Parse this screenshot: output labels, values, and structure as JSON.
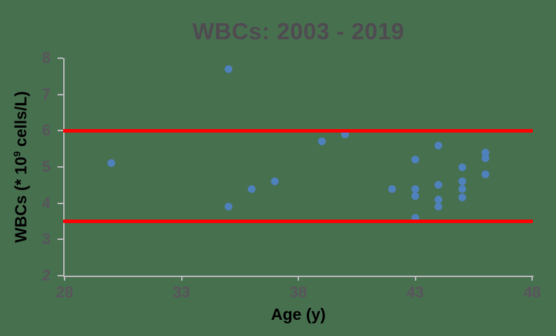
{
  "figure": {
    "background_color": "#47704f"
  },
  "chart_data": {
    "type": "scatter",
    "title": "WBCs: 2003 - 2019",
    "xlabel": "Age (y)",
    "ylabel": "WBCs (* 10⁹ cells/L)",
    "ylabel_parts": [
      "WBCs (* 10",
      "9",
      " cells/L)"
    ],
    "xlim": [
      28,
      48
    ],
    "ylim": [
      2,
      8
    ],
    "x_ticks": [
      28,
      33,
      38,
      43,
      48
    ],
    "y_ticks": [
      2,
      3,
      4,
      5,
      6,
      7,
      8
    ],
    "grid": false,
    "legend": "none",
    "points": [
      [
        30,
        5.1
      ],
      [
        35,
        7.7
      ],
      [
        35,
        3.9
      ],
      [
        36,
        4.4
      ],
      [
        37,
        4.6
      ],
      [
        39,
        5.7
      ],
      [
        40,
        5.9
      ],
      [
        42,
        4.4
      ],
      [
        43,
        5.2
      ],
      [
        43,
        4.4
      ],
      [
        43,
        4.2
      ],
      [
        43,
        3.6
      ],
      [
        44,
        5.6
      ],
      [
        44,
        4.5
      ],
      [
        44,
        4.1
      ],
      [
        44,
        3.9
      ],
      [
        45,
        5.0
      ],
      [
        45,
        4.6
      ],
      [
        45,
        4.4
      ],
      [
        45,
        4.15
      ],
      [
        46,
        5.4
      ],
      [
        46,
        5.25
      ],
      [
        46,
        4.8
      ]
    ],
    "reference_lines": [
      {
        "name": "upper-limit",
        "y": 6.0
      },
      {
        "name": "lower-limit",
        "y": 3.5
      }
    ],
    "colors": {
      "point": "#4f81bd",
      "reference_line": "#ff0000",
      "axis": "#bcbcbe",
      "tick_label": "#5a545c",
      "title": "#4f4b51",
      "axis_label": "#000000"
    }
  }
}
